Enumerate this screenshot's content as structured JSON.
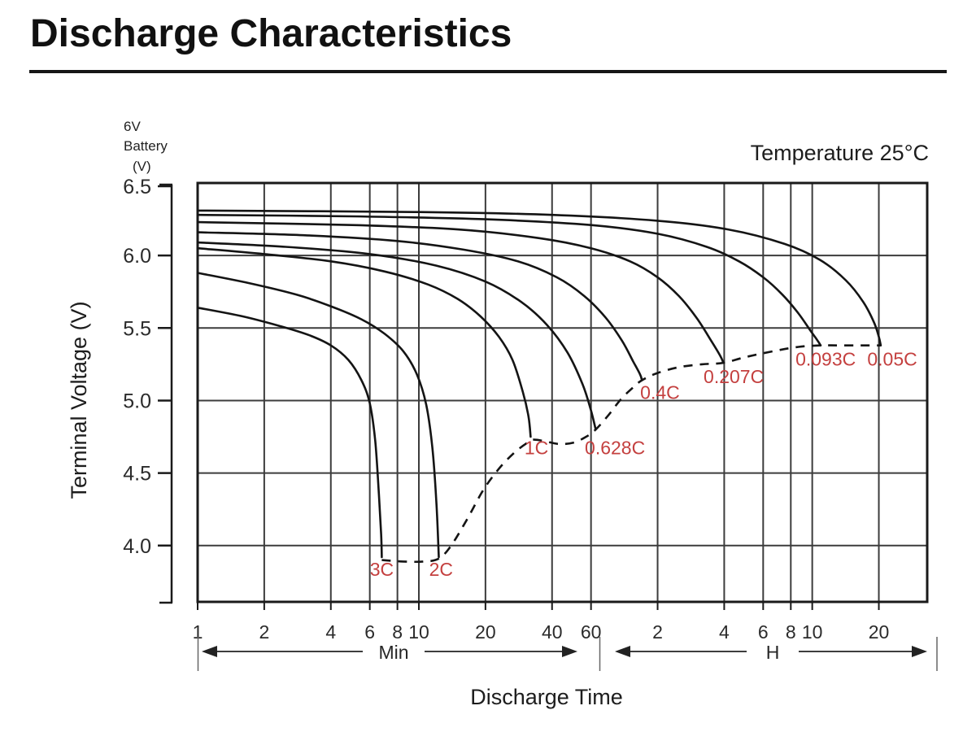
{
  "title": "Discharge Characteristics",
  "header": {
    "battery_line1": "6V",
    "battery_line2": "Battery",
    "battery_line3": "(V)",
    "temperature_label": "Temperature 25°C"
  },
  "axes": {
    "y_title": "Terminal Voltage (V)",
    "x_title": "Discharge Time",
    "min_section_label": "Min",
    "hour_section_label": "H"
  },
  "colors": {
    "curve": "#141414",
    "grid": "#3c3c3c",
    "frame": "#1a1a1a",
    "series_label": "#c4403f",
    "text": "#222222",
    "tick_text": "#2b2b2b"
  },
  "chart_data": {
    "type": "line",
    "title": "Discharge Characteristics",
    "temperature": "25°C",
    "x_axis": {
      "scale": "log",
      "label": "Discharge Time",
      "unit_sections": [
        "Min",
        "H"
      ],
      "range_minutes": [
        1,
        1980
      ],
      "ticks": [
        {
          "t": 1,
          "label": "1"
        },
        {
          "t": 2,
          "label": "2"
        },
        {
          "t": 4,
          "label": "4"
        },
        {
          "t": 6,
          "label": "6"
        },
        {
          "t": 8,
          "label": "8"
        },
        {
          "t": 10,
          "label": "10"
        },
        {
          "t": 20,
          "label": "20"
        },
        {
          "t": 40,
          "label": "40"
        },
        {
          "t": 60,
          "label": "60"
        },
        {
          "t": 120,
          "label": "2"
        },
        {
          "t": 240,
          "label": "4"
        },
        {
          "t": 360,
          "label": "6"
        },
        {
          "t": 480,
          "label": "8"
        },
        {
          "t": 600,
          "label": "10"
        },
        {
          "t": 1200,
          "label": "20"
        }
      ]
    },
    "y_axis": {
      "label": "Terminal Voltage (V)",
      "range": [
        3.6,
        6.5
      ],
      "ticks": [
        {
          "v": 6.5,
          "label": "6.5"
        },
        {
          "v": 6.0,
          "label": "6.0"
        },
        {
          "v": 5.5,
          "label": "5.5"
        },
        {
          "v": 5.0,
          "label": "5.0"
        },
        {
          "v": 4.5,
          "label": "4.5"
        },
        {
          "v": 4.0,
          "label": "4.0"
        }
      ]
    },
    "series": [
      {
        "name": "3C",
        "label_at": [
          6.8,
          3.79
        ],
        "points_t_v": [
          [
            1,
            5.64
          ],
          [
            1.6,
            5.58
          ],
          [
            2.4,
            5.51
          ],
          [
            3.2,
            5.45
          ],
          [
            4,
            5.38
          ],
          [
            4.8,
            5.28
          ],
          [
            5.5,
            5.14
          ],
          [
            6,
            4.98
          ],
          [
            6.35,
            4.72
          ],
          [
            6.6,
            4.35
          ],
          [
            6.75,
            4.08
          ],
          [
            6.8,
            3.92
          ]
        ]
      },
      {
        "name": "2C",
        "label_at": [
          12.6,
          3.79
        ],
        "points_t_v": [
          [
            1,
            5.88
          ],
          [
            1.7,
            5.81
          ],
          [
            2.8,
            5.73
          ],
          [
            4,
            5.65
          ],
          [
            5.5,
            5.56
          ],
          [
            7,
            5.46
          ],
          [
            8.5,
            5.34
          ],
          [
            9.8,
            5.18
          ],
          [
            10.8,
            4.97
          ],
          [
            11.5,
            4.68
          ],
          [
            12,
            4.3
          ],
          [
            12.3,
            3.92
          ]
        ]
      },
      {
        "name": "1C",
        "label_at": [
          34,
          4.63
        ],
        "points_t_v": [
          [
            1,
            6.05
          ],
          [
            2,
            6.01
          ],
          [
            4,
            5.96
          ],
          [
            7,
            5.89
          ],
          [
            11,
            5.8
          ],
          [
            15,
            5.7
          ],
          [
            19,
            5.58
          ],
          [
            23,
            5.44
          ],
          [
            26.5,
            5.28
          ],
          [
            29.5,
            5.06
          ],
          [
            31.3,
            4.89
          ],
          [
            32,
            4.75
          ]
        ]
      },
      {
        "name": "0.628C",
        "label_at": [
          77,
          4.63
        ],
        "points_t_v": [
          [
            1,
            6.09
          ],
          [
            2.5,
            6.06
          ],
          [
            6,
            6.01
          ],
          [
            12,
            5.93
          ],
          [
            20,
            5.82
          ],
          [
            29,
            5.68
          ],
          [
            38,
            5.52
          ],
          [
            47,
            5.33
          ],
          [
            55,
            5.11
          ],
          [
            60,
            4.93
          ],
          [
            63,
            4.8
          ]
        ]
      },
      {
        "name": "0.4C",
        "label_at": [
          123,
          5.01
        ],
        "points_t_v": [
          [
            1,
            6.16
          ],
          [
            3,
            6.14
          ],
          [
            8,
            6.1
          ],
          [
            16,
            6.04
          ],
          [
            28,
            5.96
          ],
          [
            42,
            5.85
          ],
          [
            56,
            5.72
          ],
          [
            70,
            5.57
          ],
          [
            83,
            5.41
          ],
          [
            93,
            5.27
          ],
          [
            100,
            5.18
          ],
          [
            102,
            5.14
          ]
        ]
      },
      {
        "name": "0.207C",
        "label_at": [
          265,
          5.12
        ],
        "points_t_v": [
          [
            1,
            6.23
          ],
          [
            5,
            6.21
          ],
          [
            15,
            6.18
          ],
          [
            35,
            6.12
          ],
          [
            60,
            6.05
          ],
          [
            90,
            5.96
          ],
          [
            120,
            5.85
          ],
          [
            150,
            5.72
          ],
          [
            180,
            5.57
          ],
          [
            210,
            5.41
          ],
          [
            230,
            5.31
          ],
          [
            238,
            5.26
          ]
        ]
      },
      {
        "name": "0.093C",
        "label_at": [
          690,
          5.24
        ],
        "points_t_v": [
          [
            1,
            6.28
          ],
          [
            5,
            6.27
          ],
          [
            20,
            6.25
          ],
          [
            60,
            6.21
          ],
          [
            120,
            6.15
          ],
          [
            200,
            6.06
          ],
          [
            280,
            5.96
          ],
          [
            360,
            5.85
          ],
          [
            440,
            5.73
          ],
          [
            520,
            5.6
          ],
          [
            590,
            5.48
          ],
          [
            630,
            5.42
          ],
          [
            655,
            5.38
          ]
        ]
      },
      {
        "name": "0.05C",
        "label_at": [
          1380,
          5.24
        ],
        "points_t_v": [
          [
            1,
            6.31
          ],
          [
            10,
            6.3
          ],
          [
            40,
            6.28
          ],
          [
            120,
            6.24
          ],
          [
            250,
            6.18
          ],
          [
            450,
            6.08
          ],
          [
            650,
            5.97
          ],
          [
            850,
            5.83
          ],
          [
            1020,
            5.68
          ],
          [
            1140,
            5.54
          ],
          [
            1200,
            5.44
          ],
          [
            1224,
            5.38
          ]
        ]
      }
    ],
    "cutoff_locus": {
      "style": "dashed",
      "points_t_v": [
        [
          6.8,
          3.9
        ],
        [
          8.5,
          3.89
        ],
        [
          10.5,
          3.89
        ],
        [
          12.3,
          3.91
        ],
        [
          14,
          4.0
        ],
        [
          16.5,
          4.18
        ],
        [
          19.5,
          4.38
        ],
        [
          23,
          4.53
        ],
        [
          27,
          4.64
        ],
        [
          31,
          4.71
        ],
        [
          33,
          4.73
        ],
        [
          37,
          4.72
        ],
        [
          43,
          4.7
        ],
        [
          50,
          4.71
        ],
        [
          57,
          4.75
        ],
        [
          63,
          4.8
        ],
        [
          72,
          4.9
        ],
        [
          82,
          5.01
        ],
        [
          93,
          5.09
        ],
        [
          102,
          5.14
        ],
        [
          120,
          5.19
        ],
        [
          150,
          5.23
        ],
        [
          190,
          5.25
        ],
        [
          238,
          5.26
        ],
        [
          300,
          5.3
        ],
        [
          400,
          5.34
        ],
        [
          520,
          5.37
        ],
        [
          655,
          5.38
        ],
        [
          800,
          5.38
        ],
        [
          1000,
          5.38
        ],
        [
          1224,
          5.38
        ]
      ]
    }
  }
}
